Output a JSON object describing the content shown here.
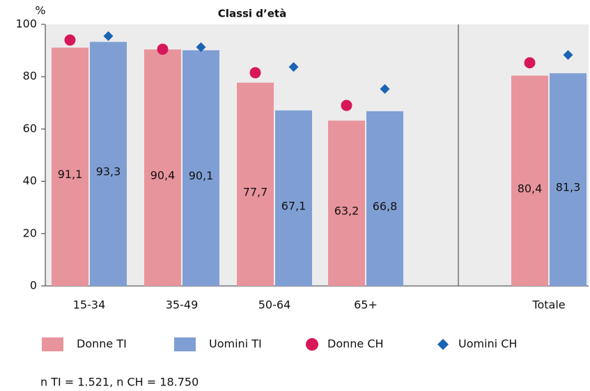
{
  "chart_data": {
    "type": "bar",
    "title": "Classi d’età",
    "y_label": "%",
    "categories": [
      "15-34",
      "35-49",
      "50-64",
      "65+",
      "Totale"
    ],
    "series": [
      {
        "name": "Donne TI",
        "color": "#e8949c",
        "marker": "bar",
        "values": [
          91.1,
          90.4,
          77.7,
          63.2,
          80.4
        ],
        "value_labels": [
          "91,1",
          "90,4",
          "77,7",
          "63,2",
          "80,4"
        ]
      },
      {
        "name": "Uomini TI",
        "color": "#7f9fd4",
        "marker": "bar",
        "values": [
          93.3,
          90.1,
          67.1,
          66.8,
          81.3
        ],
        "value_labels": [
          "93,3",
          "90,1",
          "67,1",
          "66,8",
          "81,3"
        ]
      },
      {
        "name": "Donne CH",
        "color": "#d6185a",
        "marker": "circle",
        "values": [
          94,
          90.5,
          81.5,
          69,
          85.3
        ]
      },
      {
        "name": "Uomini CH",
        "color": "#1a64b4",
        "marker": "diamond",
        "values": [
          95.5,
          91.3,
          83.7,
          75.3,
          88.3
        ]
      }
    ],
    "ylim": [
      0,
      100
    ],
    "yticks": [
      0,
      20,
      40,
      60,
      80,
      100
    ],
    "note": "n TI = 1.521, n CH = 18.750"
  }
}
